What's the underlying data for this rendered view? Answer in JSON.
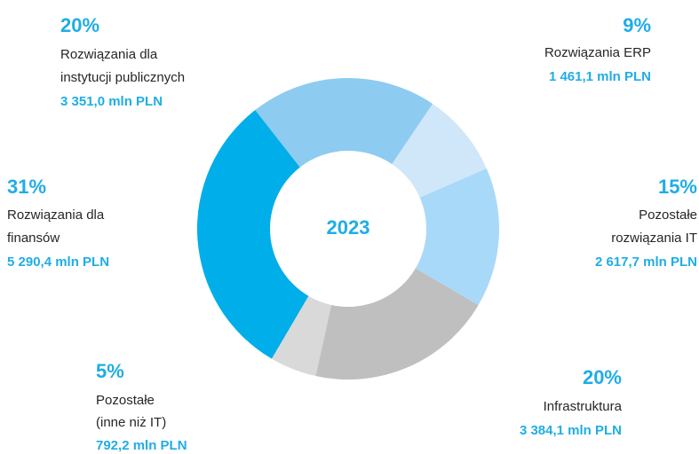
{
  "chart_data": {
    "type": "donut",
    "center_label": "2023",
    "categories": [
      [
        "Rozwiązania dla",
        "instytucji publicznych"
      ],
      [
        "Rozwiązania ERP"
      ],
      [
        "Pozostałe",
        "rozwiązania IT"
      ],
      [
        "Infrastruktura"
      ],
      [
        "Pozostałe",
        "(inne niż IT)"
      ],
      [
        "Rozwiązania dla",
        "finansów"
      ]
    ],
    "values": [
      20,
      9,
      15,
      20,
      5,
      31
    ],
    "value_labels": [
      "20%",
      "9%",
      "15%",
      "20%",
      "5%",
      "31%"
    ],
    "amounts": [
      "3 351,0  mln PLN",
      "1 461,1 mln PLN",
      "2 617,7 mln PLN",
      "3 384,1 mln PLN",
      "792,2  mln PLN",
      "5 290,4 mln PLN"
    ],
    "colors": [
      "#8ecbf0",
      "#cfe7f9",
      "#a8d9f8",
      "#bfbfbf",
      "#d9d9d9",
      "#00aee9"
    ]
  }
}
